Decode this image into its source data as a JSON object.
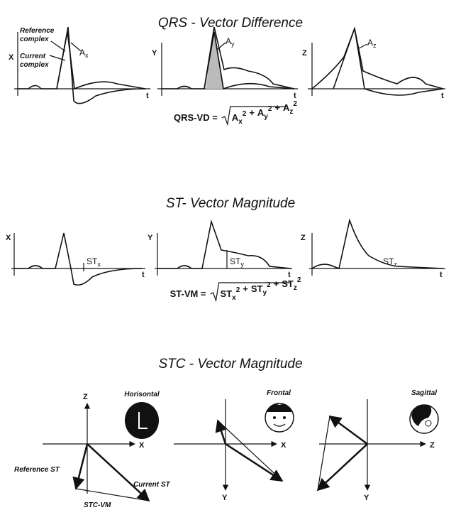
{
  "sections": [
    {
      "title": "QRS - Vector Difference",
      "reference_label": [
        "Reference",
        "complex"
      ],
      "current_label": [
        "Current",
        "complex"
      ],
      "panels": [
        {
          "axis": "X",
          "time": "t",
          "label": {
            "base": "A",
            "sub": "x"
          }
        },
        {
          "axis": "Y",
          "time": "t",
          "label": {
            "base": "A",
            "sub": "y"
          }
        },
        {
          "axis": "Z",
          "time": "t",
          "label": {
            "base": "A",
            "sub": "z"
          }
        }
      ],
      "formula": {
        "lhs": "QRS-VD =",
        "operator": "+",
        "terms": [
          {
            "base": "A",
            "sub": "x",
            "sup": "2"
          },
          {
            "base": "A",
            "sub": "y",
            "sup": "2"
          },
          {
            "base": "A",
            "sub": "z",
            "sup": "2"
          }
        ]
      }
    },
    {
      "title": "ST- Vector Magnitude",
      "panels": [
        {
          "axis": "X",
          "time": "t",
          "label": {
            "base": "ST",
            "sub": "x"
          }
        },
        {
          "axis": "Y",
          "time": "t",
          "label": {
            "base": "ST",
            "sub": "y"
          }
        },
        {
          "axis": "Z",
          "time": "t",
          "label": {
            "base": "ST",
            "sub": "z"
          }
        }
      ],
      "formula": {
        "lhs": "ST-VM =",
        "operator": "+",
        "terms": [
          {
            "base": "ST",
            "sub": "x",
            "sup": "2"
          },
          {
            "base": "ST",
            "sub": "y",
            "sup": "2"
          },
          {
            "base": "ST",
            "sub": "z",
            "sup": "2"
          }
        ]
      }
    }
  ],
  "stc": {
    "title": "STC - Vector Magnitude",
    "planes": [
      {
        "name": "Horisontal",
        "vertical": "Z",
        "horizontal": "X"
      },
      {
        "name": "Frontal",
        "vertical": "Y",
        "horizontal": "X"
      },
      {
        "name": "Sagittal",
        "vertical": "Y",
        "horizontal": "Z"
      }
    ],
    "labels": {
      "reference": "Reference ST",
      "current": "Current ST",
      "difference": "STC-VM"
    }
  }
}
